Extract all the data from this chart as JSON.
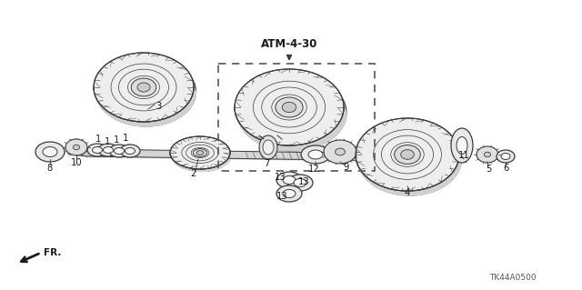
{
  "title": "ATM-4-30",
  "part_label": "TK44A0500",
  "fr_label": "FR.",
  "bg_color": "#ffffff",
  "line_color": "#3a3a3a",
  "text_color": "#1a1a1a",
  "figsize": [
    6.4,
    3.19
  ],
  "dpi": 100,
  "xlim": [
    0,
    640
  ],
  "ylim": [
    0,
    319
  ]
}
